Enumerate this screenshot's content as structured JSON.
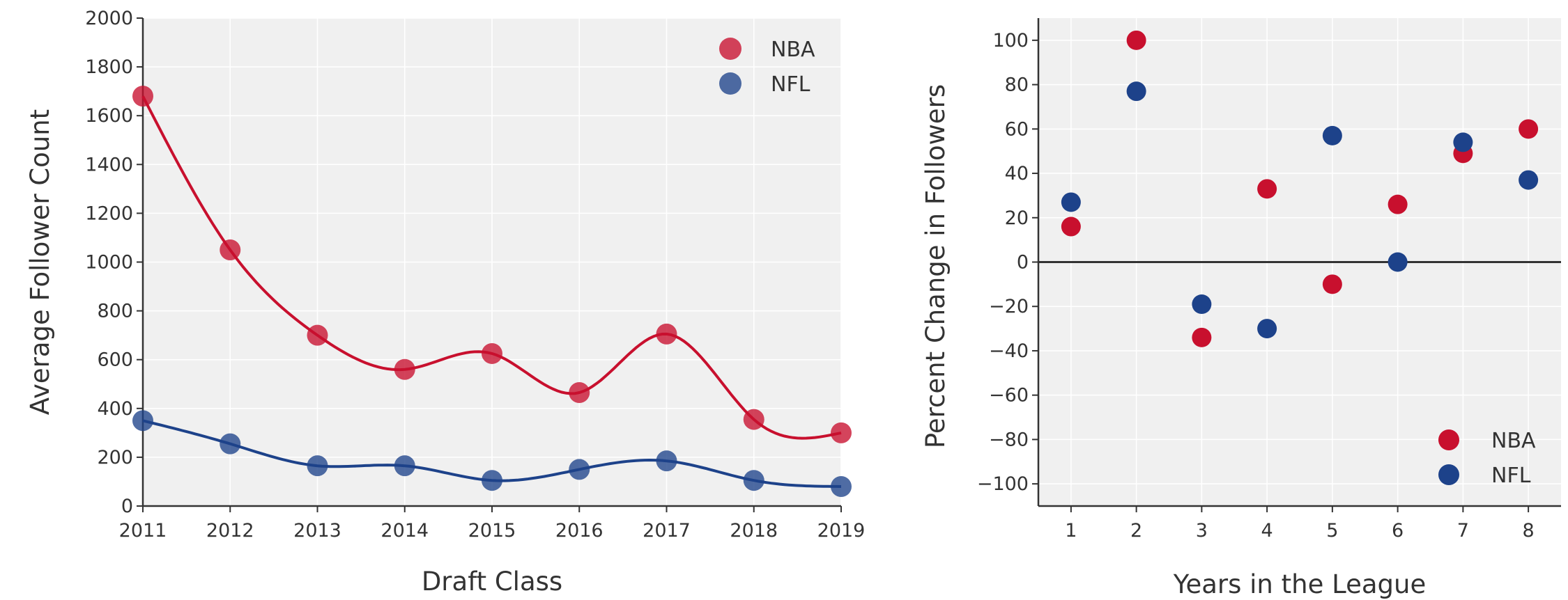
{
  "chart_data": [
    {
      "type": "scatter",
      "xlabel": "Draft Class",
      "ylabel": "Average Follower Count",
      "xlim": [
        2011,
        2019
      ],
      "ylim": [
        0,
        2000
      ],
      "xticks": [
        "2011",
        "2012",
        "2013",
        "2014",
        "2015",
        "2016",
        "2017",
        "2018",
        "2019"
      ],
      "yticks": [
        "0",
        "200",
        "400",
        "600",
        "800",
        "1000",
        "1200",
        "1400",
        "1600",
        "1800",
        "2000"
      ],
      "grid": true,
      "trend_lines": true,
      "legend": {
        "position": "top-right",
        "entries": [
          "NBA",
          "NFL"
        ]
      },
      "series": [
        {
          "name": "NBA",
          "color": "#c8102e",
          "x": [
            2011,
            2012,
            2013,
            2014,
            2015,
            2016,
            2017,
            2018,
            2019
          ],
          "y": [
            1680,
            1050,
            700,
            560,
            625,
            465,
            705,
            355,
            300
          ]
        },
        {
          "name": "NFL",
          "color": "#1d428a",
          "x": [
            2011,
            2012,
            2013,
            2014,
            2015,
            2016,
            2017,
            2018,
            2019
          ],
          "y": [
            350,
            255,
            165,
            165,
            105,
            150,
            185,
            105,
            80
          ]
        }
      ]
    },
    {
      "type": "scatter",
      "xlabel": "Years in the League",
      "ylabel": "Percent Change in Followers",
      "xlim": [
        0.5,
        8.5
      ],
      "ylim": [
        -110,
        110
      ],
      "xticks": [
        "1",
        "2",
        "3",
        "4",
        "5",
        "6",
        "7",
        "8"
      ],
      "yticks": [
        "100",
        "80",
        "60",
        "40",
        "20",
        "0",
        "−20",
        "−40",
        "−60",
        "−80",
        "−100"
      ],
      "grid": true,
      "zero_line": true,
      "legend": {
        "position": "bottom-right",
        "entries": [
          "NBA",
          "NFL"
        ]
      },
      "series": [
        {
          "name": "NBA",
          "color": "#c8102e",
          "x": [
            1,
            2,
            3,
            4,
            5,
            6,
            7,
            8
          ],
          "y": [
            16,
            100,
            -34,
            33,
            -10,
            26,
            49,
            60
          ]
        },
        {
          "name": "NFL",
          "color": "#1d428a",
          "x": [
            1,
            2,
            3,
            4,
            5,
            6,
            7,
            8
          ],
          "y": [
            27,
            77,
            -19,
            -30,
            57,
            0,
            54,
            37
          ]
        }
      ]
    }
  ]
}
